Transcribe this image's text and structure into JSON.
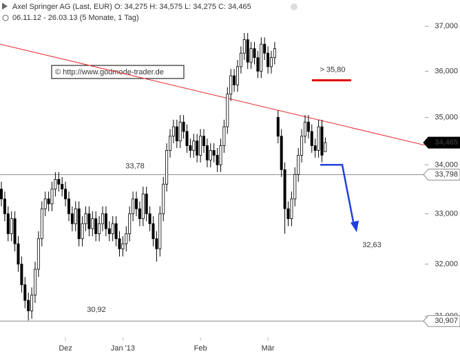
{
  "chart_data": {
    "type": "candlestick",
    "title": "Axel Springer AG (Last, EUR)  O: 34,275  H: 34,575  L: 34,275  C: 34,465",
    "subtitle": "06.11.12 - 26.03.13 (5 Monate, 1 Tag)",
    "watermark": "© http://www.godmode-trader.de",
    "log_scale": true,
    "ylim": [
      30.6,
      37.6
    ],
    "yticks": [
      {
        "value": 31,
        "label": "31,000"
      },
      {
        "value": 32,
        "label": "32,000"
      },
      {
        "value": 33,
        "label": "33,000"
      },
      {
        "value": 34,
        "label": "34,000"
      },
      {
        "value": 35,
        "label": "35,000"
      },
      {
        "value": 36,
        "label": "36,000"
      },
      {
        "value": 37,
        "label": "37,000"
      }
    ],
    "xticks": [
      {
        "value": 19,
        "label": "Dez"
      },
      {
        "value": 36,
        "label": "Jan '13"
      },
      {
        "value": 59,
        "label": "Feb"
      },
      {
        "value": 79,
        "label": "Mär"
      }
    ],
    "color": "#000000",
    "open": [
      33.5,
      33.3,
      33.0,
      32.6,
      32.9,
      32.4,
      32.0,
      31.6,
      31.3,
      31.1,
      31.4,
      31.9,
      32.5,
      33.1,
      33.3,
      33.2,
      33.5,
      33.7,
      33.6,
      33.5,
      33.3,
      33.0,
      32.8,
      33.1,
      32.5,
      32.8,
      33.0,
      32.7,
      32.9,
      32.6,
      32.8,
      33.0,
      32.7,
      32.6,
      32.8,
      32.5,
      32.3,
      32.4,
      32.6,
      33.0,
      33.3,
      33.1,
      32.9,
      33.4,
      33.0,
      32.8,
      32.5,
      32.3,
      33.0,
      33.6,
      34.3,
      34.6,
      34.8,
      34.5,
      34.9,
      34.7,
      34.4,
      34.3,
      34.5,
      34.2,
      34.6,
      34.4,
      34.1,
      34.3,
      34.2,
      34.0,
      34.4,
      34.8,
      35.5,
      35.9,
      35.7,
      36.1,
      36.4,
      36.7,
      36.2,
      36.5,
      36.3,
      36.0,
      36.6,
      36.4,
      36.1,
      36.3,
      35.0,
      34.6,
      33.9,
      33.1,
      32.9,
      33.3,
      33.8,
      34.2,
      34.6,
      34.9,
      34.7,
      34.4,
      34.3,
      34.8,
      34.275
    ],
    "high": [
      33.65,
      33.45,
      33.15,
      33.05,
      33.05,
      32.55,
      32.15,
      31.75,
      31.45,
      31.55,
      32.05,
      32.65,
      33.25,
      33.45,
      33.45,
      33.65,
      33.85,
      33.85,
      33.75,
      33.65,
      33.45,
      33.15,
      33.25,
      33.25,
      32.95,
      33.15,
      33.15,
      33.05,
      33.05,
      32.95,
      33.15,
      33.15,
      32.85,
      32.95,
      32.95,
      32.65,
      32.55,
      32.75,
      33.15,
      33.45,
      33.45,
      33.25,
      33.55,
      33.55,
      33.15,
      32.95,
      32.65,
      33.15,
      33.75,
      34.45,
      34.75,
      34.95,
      34.95,
      35.05,
      35.05,
      34.85,
      34.55,
      34.65,
      34.65,
      34.75,
      34.75,
      34.55,
      34.45,
      34.45,
      34.35,
      34.55,
      34.95,
      35.65,
      36.05,
      36.05,
      36.25,
      36.55,
      36.85,
      36.85,
      36.65,
      36.65,
      36.45,
      36.75,
      36.75,
      36.55,
      36.45,
      36.65,
      35.15,
      34.75,
      34.05,
      33.25,
      33.45,
      33.95,
      34.35,
      34.75,
      35.05,
      35.05,
      34.85,
      34.55,
      34.95,
      34.95,
      34.575
    ],
    "low": [
      33.15,
      32.85,
      32.45,
      32.45,
      32.25,
      31.85,
      31.45,
      31.15,
      30.92,
      30.95,
      31.25,
      31.75,
      32.35,
      32.95,
      33.05,
      33.05,
      33.35,
      33.45,
      33.35,
      33.15,
      32.85,
      32.65,
      32.65,
      32.35,
      32.35,
      32.65,
      32.55,
      32.55,
      32.45,
      32.45,
      32.65,
      32.55,
      32.45,
      32.45,
      32.35,
      32.15,
      32.15,
      32.25,
      32.45,
      32.85,
      32.95,
      32.75,
      32.75,
      32.85,
      32.65,
      32.35,
      32.05,
      32.15,
      32.85,
      33.45,
      34.15,
      34.45,
      34.35,
      34.35,
      34.55,
      34.25,
      34.15,
      34.15,
      34.05,
      34.05,
      34.25,
      33.95,
      33.95,
      34.05,
      33.85,
      33.85,
      34.25,
      34.65,
      35.35,
      35.55,
      35.55,
      35.95,
      36.25,
      36.05,
      36.05,
      36.15,
      35.85,
      35.85,
      36.25,
      35.95,
      35.95,
      36.15,
      34.45,
      33.75,
      32.6,
      32.75,
      32.75,
      33.15,
      33.65,
      34.05,
      34.45,
      34.55,
      34.25,
      34.15,
      34.15,
      34.05,
      34.275
    ],
    "close": [
      33.3,
      33.0,
      32.6,
      32.9,
      32.4,
      32.0,
      31.6,
      31.3,
      31.1,
      31.4,
      31.9,
      32.5,
      33.1,
      33.3,
      33.2,
      33.5,
      33.7,
      33.6,
      33.5,
      33.3,
      33.0,
      32.8,
      33.1,
      32.5,
      32.8,
      33.0,
      32.7,
      32.9,
      32.6,
      32.8,
      33.0,
      32.7,
      32.6,
      32.8,
      32.5,
      32.3,
      32.4,
      32.6,
      33.0,
      33.3,
      33.1,
      32.9,
      33.4,
      33.0,
      32.8,
      32.5,
      32.3,
      33.0,
      33.6,
      34.3,
      34.6,
      34.8,
      34.5,
      34.9,
      34.7,
      34.4,
      34.3,
      34.5,
      34.2,
      34.6,
      34.4,
      34.1,
      34.3,
      34.2,
      34.0,
      34.4,
      34.8,
      35.5,
      35.9,
      35.7,
      36.1,
      36.4,
      36.7,
      36.2,
      36.5,
      36.3,
      36.0,
      36.6,
      36.4,
      36.1,
      36.3,
      36.5,
      34.6,
      33.9,
      33.1,
      32.9,
      33.3,
      33.8,
      34.2,
      34.6,
      34.9,
      34.7,
      34.4,
      34.3,
      34.8,
      34.2,
      34.465
    ],
    "trendline": {
      "values": [
        36.6,
        34.4
      ],
      "color": "#e8262a"
    },
    "hlines": [
      {
        "value": 33.798,
        "label": "33,798",
        "color": "#888888"
      },
      {
        "value": 30.907,
        "label": "30,907",
        "color": "#888888"
      }
    ],
    "last_price": {
      "value": 34.465,
      "label": "34,465",
      "color": "#000000"
    },
    "resistance": {
      "value": 35.8,
      "label": "> 35,80",
      "color": "#e00000"
    },
    "projection": {
      "values": [
        34.0,
        32.63
      ],
      "label": "32,63",
      "color": "#1f3fd8"
    },
    "annotations": [
      "33,78",
      "30,92"
    ]
  }
}
